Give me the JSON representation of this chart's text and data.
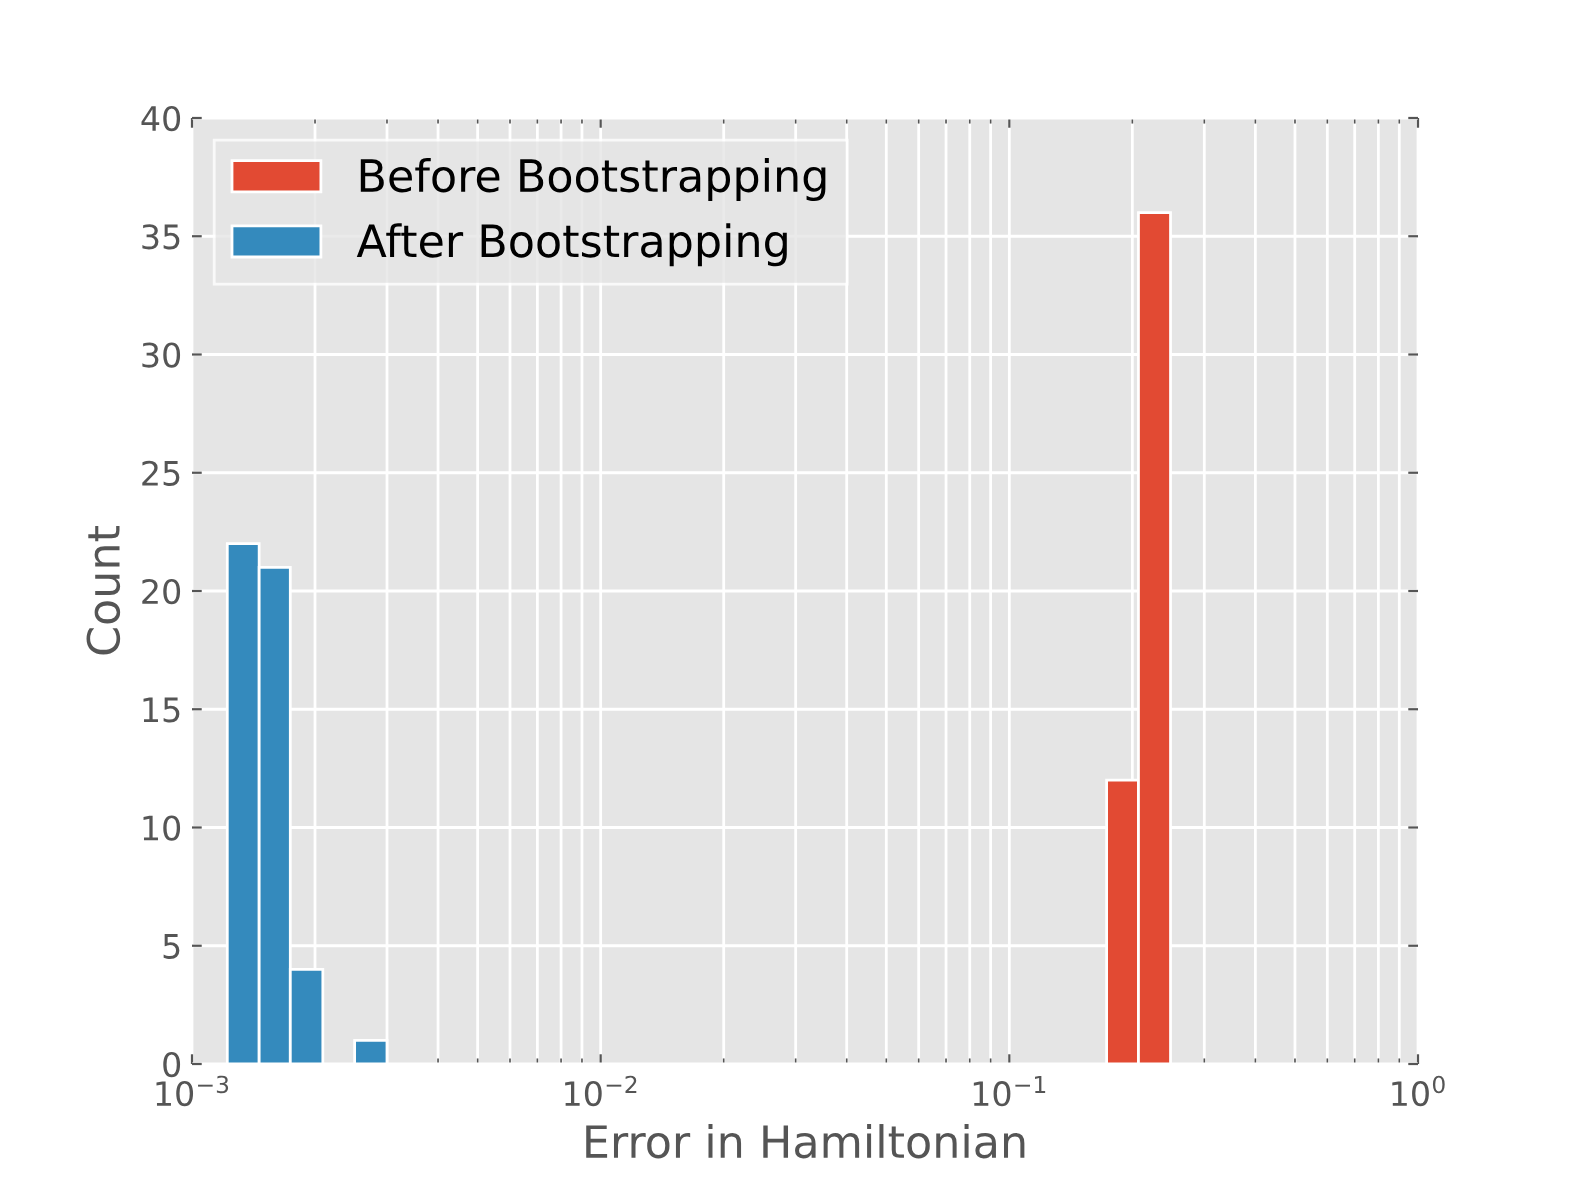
{
  "chart_data": {
    "type": "histogram",
    "xlabel": "Error in Hamiltonian",
    "ylabel": "Count",
    "log": "x",
    "grid": true,
    "legend": "top left",
    "xlim": [
      0.001,
      1
    ],
    "xticks": [
      {
        "value": 0.001,
        "label": "10$^{−3}$"
      },
      {
        "value": 0.01,
        "label": "10$^{−2}$"
      },
      {
        "value": 0.1,
        "label": "10$^{−1}$"
      },
      {
        "value": 1,
        "label": "10$^{0}$"
      }
    ],
    "ylim": [
      0,
      40
    ],
    "yticks": [
      0,
      5,
      10,
      15,
      20,
      25,
      30,
      35,
      40
    ],
    "bins": [
      0.00122,
      0.00146,
      0.00174,
      0.00209,
      0.0025,
      0.003,
      0.173,
      0.207,
      0.248
    ],
    "series": [
      {
        "name": "Before Bootstrapping",
        "color": "#e24a33",
        "values": [
          null,
          null,
          null,
          null,
          null,
          null,
          12,
          36
        ]
      },
      {
        "name": "After Bootstrapping",
        "color": "#348abd",
        "values": [
          22,
          21,
          4,
          0,
          1,
          null,
          null,
          null
        ]
      }
    ]
  }
}
